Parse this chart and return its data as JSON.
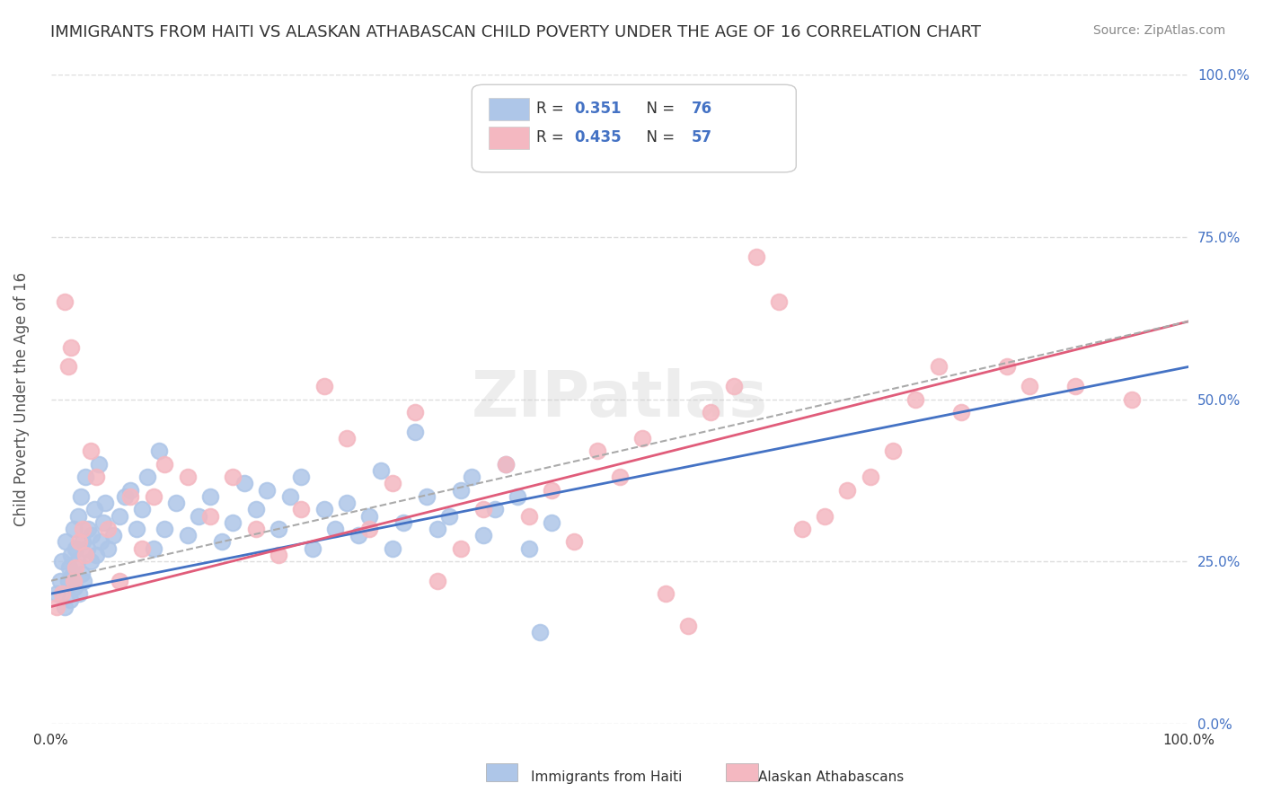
{
  "title": "IMMIGRANTS FROM HAITI VS ALASKAN ATHABASCAN CHILD POVERTY UNDER THE AGE OF 16 CORRELATION CHART",
  "source": "Source: ZipAtlas.com",
  "xlabel": "",
  "ylabel": "Child Poverty Under the Age of 16",
  "xlim": [
    0.0,
    1.0
  ],
  "ylim": [
    0.0,
    1.0
  ],
  "xtick_labels": [
    "0.0%",
    "100.0%"
  ],
  "ytick_labels": [
    "0.0%",
    "25.0%",
    "50.0%",
    "75.0%",
    "100.0%"
  ],
  "ytick_positions": [
    0.0,
    0.25,
    0.5,
    0.75,
    1.0
  ],
  "legend_entries": [
    {
      "label": "Immigrants from Haiti",
      "color": "#aec6e8",
      "R": "0.351",
      "N": "76"
    },
    {
      "label": "Alaskan Athabascans",
      "color": "#f4b8c1",
      "R": "0.435",
      "N": "57"
    }
  ],
  "blue_scatter_x": [
    0.005,
    0.008,
    0.01,
    0.012,
    0.013,
    0.015,
    0.016,
    0.017,
    0.018,
    0.019,
    0.02,
    0.021,
    0.022,
    0.023,
    0.024,
    0.025,
    0.026,
    0.027,
    0.028,
    0.029,
    0.03,
    0.032,
    0.033,
    0.035,
    0.036,
    0.038,
    0.04,
    0.042,
    0.044,
    0.046,
    0.048,
    0.05,
    0.055,
    0.06,
    0.065,
    0.07,
    0.075,
    0.08,
    0.085,
    0.09,
    0.095,
    0.1,
    0.11,
    0.12,
    0.13,
    0.14,
    0.15,
    0.16,
    0.17,
    0.18,
    0.19,
    0.2,
    0.21,
    0.22,
    0.23,
    0.24,
    0.25,
    0.26,
    0.27,
    0.28,
    0.29,
    0.3,
    0.31,
    0.32,
    0.33,
    0.34,
    0.35,
    0.36,
    0.37,
    0.38,
    0.39,
    0.4,
    0.41,
    0.42,
    0.43,
    0.44
  ],
  "blue_scatter_y": [
    0.2,
    0.22,
    0.25,
    0.18,
    0.28,
    0.22,
    0.24,
    0.19,
    0.26,
    0.23,
    0.3,
    0.21,
    0.27,
    0.25,
    0.32,
    0.2,
    0.35,
    0.23,
    0.28,
    0.22,
    0.38,
    0.27,
    0.3,
    0.25,
    0.29,
    0.33,
    0.26,
    0.4,
    0.28,
    0.31,
    0.34,
    0.27,
    0.29,
    0.32,
    0.35,
    0.36,
    0.3,
    0.33,
    0.38,
    0.27,
    0.42,
    0.3,
    0.34,
    0.29,
    0.32,
    0.35,
    0.28,
    0.31,
    0.37,
    0.33,
    0.36,
    0.3,
    0.35,
    0.38,
    0.27,
    0.33,
    0.3,
    0.34,
    0.29,
    0.32,
    0.39,
    0.27,
    0.31,
    0.45,
    0.35,
    0.3,
    0.32,
    0.36,
    0.38,
    0.29,
    0.33,
    0.4,
    0.35,
    0.27,
    0.14,
    0.31
  ],
  "pink_scatter_x": [
    0.005,
    0.01,
    0.012,
    0.015,
    0.018,
    0.02,
    0.022,
    0.025,
    0.028,
    0.03,
    0.035,
    0.04,
    0.05,
    0.06,
    0.07,
    0.08,
    0.09,
    0.1,
    0.12,
    0.14,
    0.16,
    0.18,
    0.2,
    0.22,
    0.24,
    0.26,
    0.28,
    0.3,
    0.32,
    0.34,
    0.36,
    0.38,
    0.4,
    0.42,
    0.44,
    0.46,
    0.48,
    0.5,
    0.52,
    0.54,
    0.56,
    0.58,
    0.6,
    0.62,
    0.64,
    0.66,
    0.68,
    0.7,
    0.72,
    0.74,
    0.76,
    0.78,
    0.8,
    0.84,
    0.86,
    0.9,
    0.95
  ],
  "pink_scatter_y": [
    0.18,
    0.2,
    0.65,
    0.55,
    0.58,
    0.22,
    0.24,
    0.28,
    0.3,
    0.26,
    0.42,
    0.38,
    0.3,
    0.22,
    0.35,
    0.27,
    0.35,
    0.4,
    0.38,
    0.32,
    0.38,
    0.3,
    0.26,
    0.33,
    0.52,
    0.44,
    0.3,
    0.37,
    0.48,
    0.22,
    0.27,
    0.33,
    0.4,
    0.32,
    0.36,
    0.28,
    0.42,
    0.38,
    0.44,
    0.2,
    0.15,
    0.48,
    0.52,
    0.72,
    0.65,
    0.3,
    0.32,
    0.36,
    0.38,
    0.42,
    0.5,
    0.55,
    0.48,
    0.55,
    0.52,
    0.52,
    0.5
  ],
  "blue_line_x": [
    0.0,
    1.0
  ],
  "blue_line_y": [
    0.2,
    0.55
  ],
  "pink_line_x": [
    0.0,
    1.0
  ],
  "pink_line_y": [
    0.18,
    0.62
  ],
  "background_color": "#ffffff",
  "grid_color": "#dddddd",
  "title_color": "#333333",
  "watermark": "ZIPatlas",
  "watermark_color": "#cccccc"
}
